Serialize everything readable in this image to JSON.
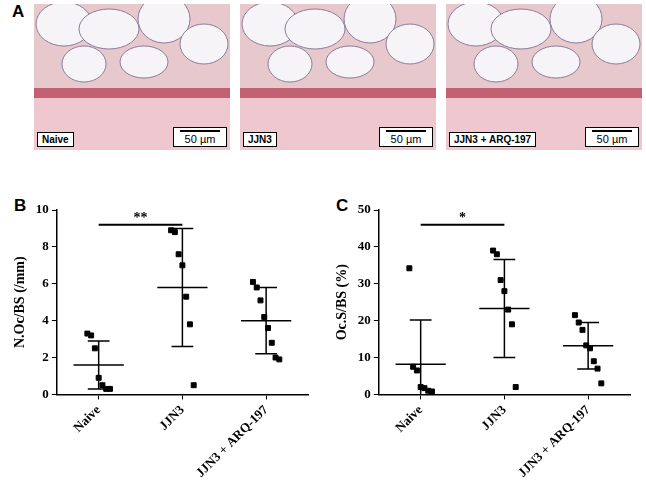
{
  "images": {
    "panel": "A",
    "items": [
      {
        "caption": "Naive",
        "scale_bar": "50 µm"
      },
      {
        "caption": "JJN3",
        "scale_bar": "50 µm"
      },
      {
        "caption": "JJN3 + ARQ-197",
        "scale_bar": "50 µm"
      }
    ]
  },
  "chart_data": [
    {
      "panel": "B",
      "type": "scatter",
      "categories": [
        "Naive",
        "JJN3",
        "JJN3 + ARQ-197"
      ],
      "values": [
        [
          3.3,
          3.2,
          2.5,
          0.9,
          0.5,
          0.3,
          0.3
        ],
        [
          8.9,
          8.8,
          7.6,
          7.0,
          5.3,
          3.8,
          0.5
        ],
        [
          6.1,
          5.8,
          5.1,
          4.2,
          3.6,
          2.8,
          2.0,
          1.9
        ]
      ],
      "mean": [
        1.6,
        5.8,
        4.0
      ],
      "sd": [
        1.3,
        3.2,
        1.8
      ],
      "ylabel": "N.Oc/BS (/mm)",
      "ylim": [
        0,
        10
      ],
      "yticks": [
        0,
        2,
        4,
        6,
        8,
        10
      ],
      "annotations": [
        {
          "from": "Naive",
          "to": "JJN3",
          "text": "**"
        }
      ],
      "marker": "square",
      "color": "#000000",
      "grid": false
    },
    {
      "panel": "C",
      "type": "scatter",
      "categories": [
        "Naive",
        "JJN3",
        "JJN3 + ARQ-197"
      ],
      "values": [
        [
          34.2,
          7.5,
          6.5,
          2.0,
          1.7,
          1.0,
          0.8
        ],
        [
          39.0,
          38.0,
          31.0,
          28.0,
          23.0,
          19.0,
          2.0
        ],
        [
          21.5,
          19.5,
          17.5,
          13.3,
          12.5,
          9.0,
          7.0,
          3.0
        ]
      ],
      "mean": [
        8.2,
        23.3,
        13.2
      ],
      "sd": [
        12.0,
        13.3,
        6.3
      ],
      "ylabel": "Oc.S/BS (%)",
      "ylim": [
        0,
        50
      ],
      "yticks": [
        0,
        10,
        20,
        30,
        40,
        50
      ],
      "annotations": [
        {
          "from": "Naive",
          "to": "JJN3",
          "text": "*"
        }
      ],
      "marker": "square",
      "color": "#000000",
      "grid": false
    }
  ]
}
